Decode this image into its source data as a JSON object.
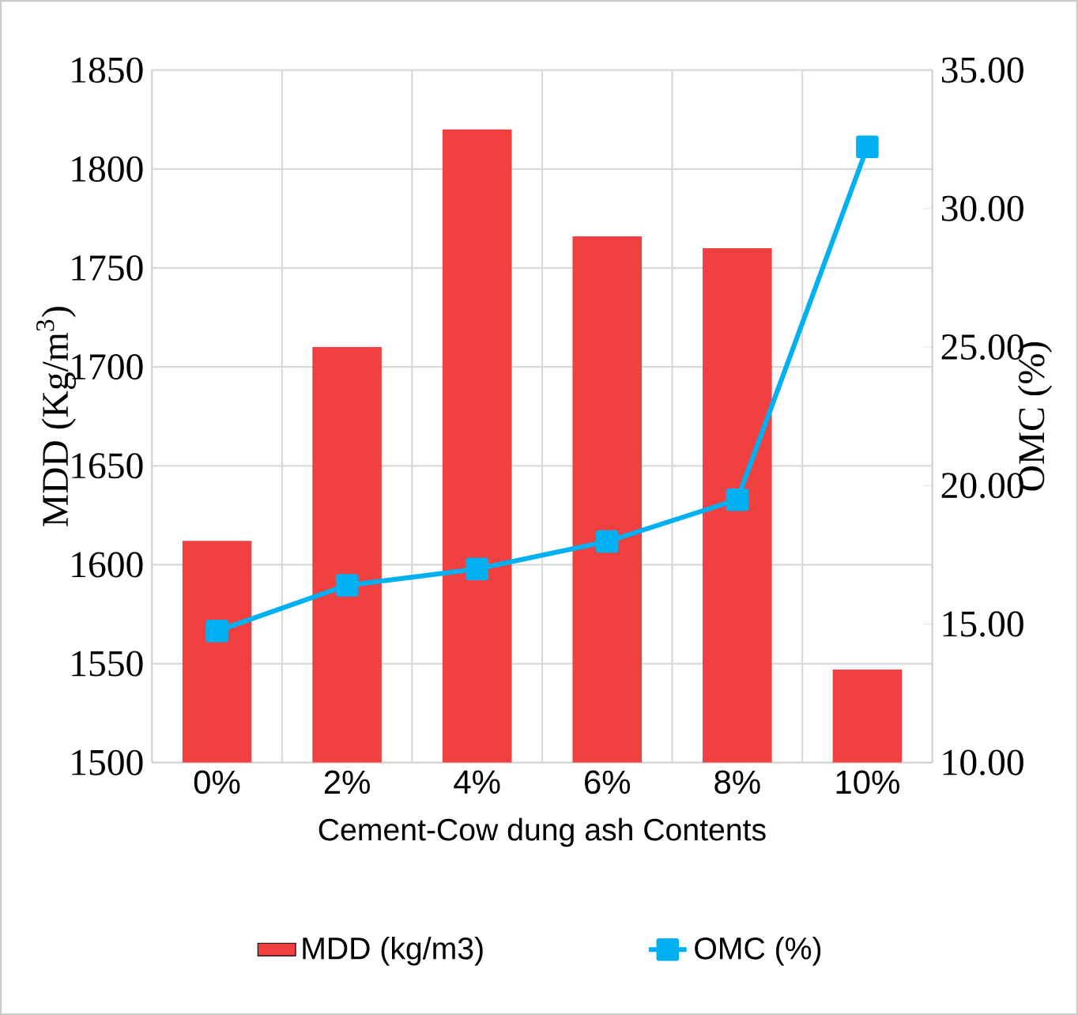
{
  "chart_data": {
    "type": "bar",
    "xlabel": "Cement-Cow dung ash Contents",
    "ylabel": "MDD (Kg/m$^{3}$)",
    "y2label": "OMC (%)",
    "categories": [
      "0%",
      "2%",
      "4%",
      "6%",
      "8%",
      "10%"
    ],
    "series": [
      {
        "name": "MDD (kg/m3)",
        "color": "#f04040",
        "values": [
          1612,
          1710,
          1820,
          1766,
          1760,
          1547
        ]
      },
      {
        "name": "OMC (%)",
        "type": "line",
        "axis": "y2",
        "color": "#00b0f0",
        "marker": "square",
        "values": [
          14.75,
          16.4,
          16.99,
          17.98,
          19.49,
          32.23
        ]
      }
    ],
    "ylim": [
      1500,
      1850
    ],
    "yticks": [
      1500,
      1550,
      1600,
      1650,
      1700,
      1750,
      1800,
      1850
    ],
    "y2lim": [
      10,
      35
    ],
    "y2ticks": [
      {
        "value": 10,
        "label": "10.00"
      },
      {
        "value": 15,
        "label": "15.00"
      },
      {
        "value": 20,
        "label": "20.00"
      },
      {
        "value": 25,
        "label": "25.00"
      },
      {
        "value": 30,
        "label": "30.00"
      },
      {
        "value": 35,
        "label": "35.00"
      }
    ],
    "grid": true,
    "legend": "bottom"
  }
}
